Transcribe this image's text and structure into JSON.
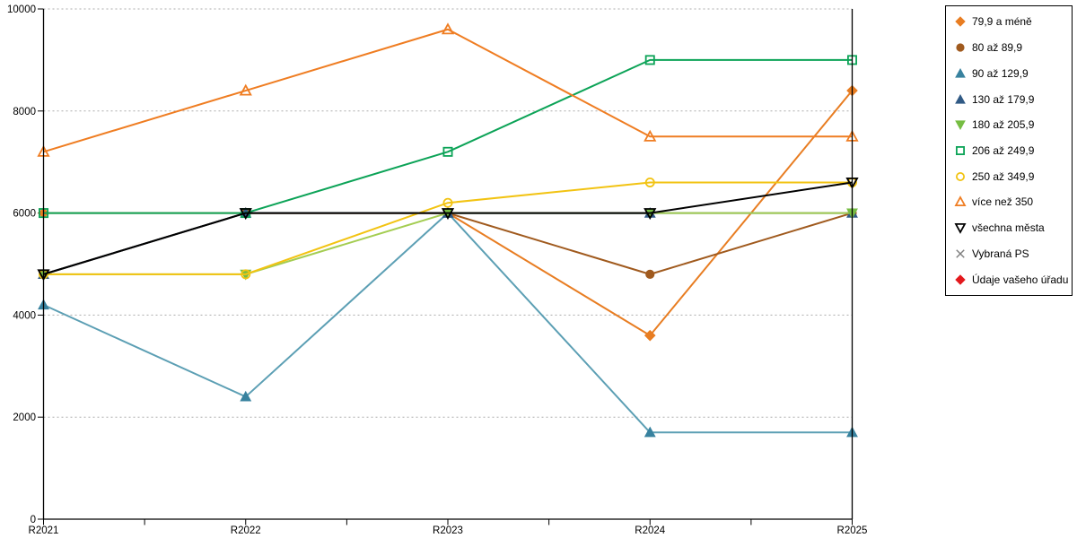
{
  "chart_data": {
    "type": "line",
    "title": "",
    "xlabel": "",
    "ylabel": "",
    "x": [
      "R2021",
      "R2022",
      "R2023",
      "R2024",
      "R2025"
    ],
    "ylim": [
      0,
      10000
    ],
    "yticks": [
      0,
      2000,
      4000,
      6000,
      8000,
      10000
    ],
    "grid": "horizontal-dashed",
    "grid_color": "#ababab",
    "axis_color": "#000000",
    "legend_position": "top-right",
    "series": [
      {
        "name": "79,9 a méně",
        "marker": "diamond",
        "style": "filled",
        "color": "#e87d22",
        "values": [
          6000,
          6000,
          6000,
          3600,
          8400
        ]
      },
      {
        "name": "80 až 89,9",
        "marker": "circle",
        "style": "filled",
        "color": "#a05a1e",
        "values": [
          4800,
          6000,
          6000,
          4800,
          6000
        ]
      },
      {
        "name": "90 až 129,9",
        "marker": "triangle-up",
        "style": "filled",
        "color": "#38829f",
        "line_color": "#5c9fb4",
        "values": [
          4200,
          2400,
          6000,
          1700,
          1700
        ]
      },
      {
        "name": "130 až 179,9",
        "marker": "triangle-up",
        "style": "filled",
        "color": "#305a85",
        "values": [
          4800,
          6000,
          6000,
          6000,
          6000
        ]
      },
      {
        "name": "180 až 205,9",
        "marker": "triangle-down",
        "style": "filled",
        "color": "#76bd43",
        "line_color": "#a4cd52",
        "values": [
          4800,
          4800,
          6000,
          6000,
          6000
        ]
      },
      {
        "name": "206 až 249,9",
        "marker": "square",
        "style": "open",
        "color": "#0ca357",
        "values": [
          6000,
          6000,
          7200,
          9000,
          9000
        ]
      },
      {
        "name": "250 až 349,9",
        "marker": "circle",
        "style": "open",
        "color": "#f2c312",
        "values": [
          4800,
          4800,
          6200,
          6600,
          6600
        ]
      },
      {
        "name": "více než 350",
        "marker": "triangle-up",
        "style": "open",
        "color": "#ef7d22",
        "values": [
          7200,
          8400,
          9600,
          7500,
          7500
        ]
      },
      {
        "name": "všechna města",
        "marker": "triangle-down",
        "style": "open",
        "color": "#000000",
        "values": [
          4800,
          6000,
          6000,
          6000,
          6600
        ]
      },
      {
        "name": "Vybraná PS",
        "marker": "x",
        "style": "open",
        "color": "#7f7f7f",
        "values": []
      },
      {
        "name": "Údaje vašeho úřadu",
        "marker": "diamond",
        "style": "filled",
        "color": "#e3191d",
        "values": []
      }
    ]
  }
}
